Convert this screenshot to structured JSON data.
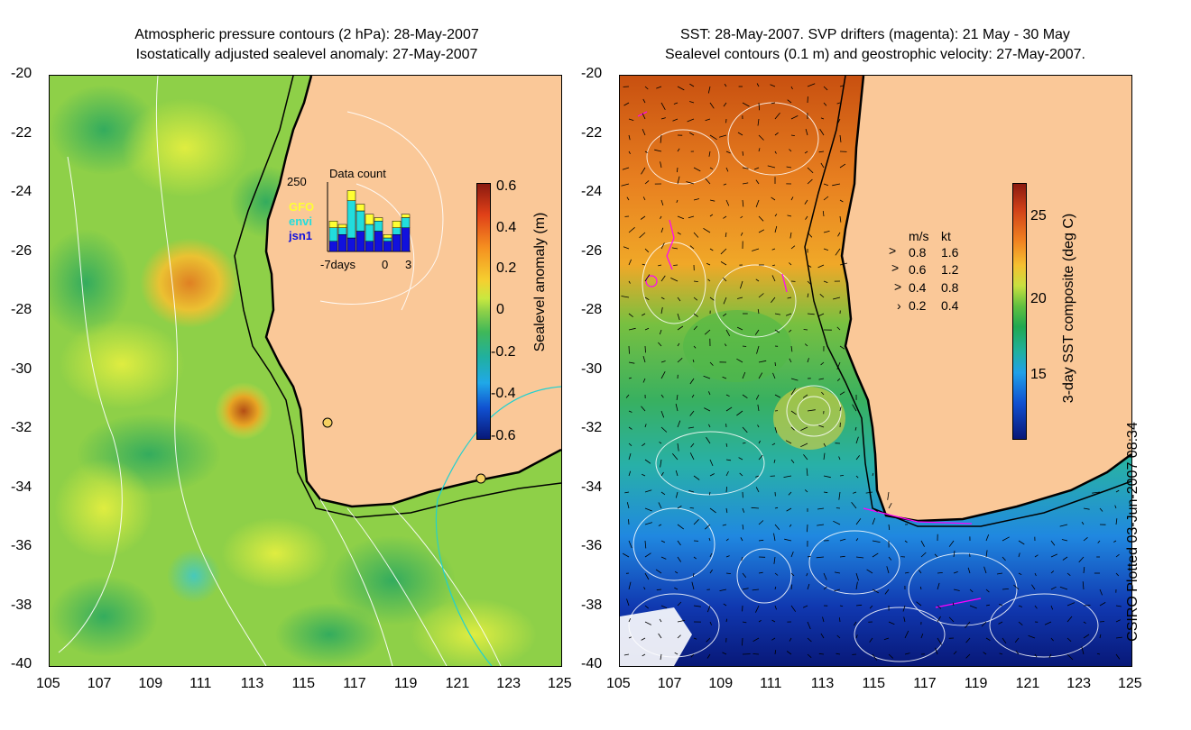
{
  "left_panel": {
    "title_line1": "Atmospheric pressure contours (2 hPa): 28-May-2007",
    "title_line2": "Isostatically adjusted sealevel anomaly: 27-May-2007",
    "colorbar_label": "Sealevel anomaly (m)",
    "colorbar_ticks": [
      "0.6",
      "0.4",
      "0.2",
      "0",
      "-0.2",
      "-0.4",
      "-0.6"
    ],
    "inset": {
      "title": "Data count",
      "y_max": "250",
      "satellites": [
        {
          "name": "GFO",
          "color": "#ffff33"
        },
        {
          "name": "envi",
          "color": "#22dddd"
        },
        {
          "name": "jsn1",
          "color": "#1111dd"
        }
      ],
      "x_labels": [
        "-7days",
        "0",
        "3"
      ],
      "bars": [
        {
          "gfo": 0.1,
          "envi": 0.2,
          "jsn1": 0.15
        },
        {
          "gfo": 0.05,
          "envi": 0.1,
          "jsn1": 0.25
        },
        {
          "gfo": 0.15,
          "envi": 0.55,
          "jsn1": 0.2
        },
        {
          "gfo": 0.1,
          "envi": 0.3,
          "jsn1": 0.3
        },
        {
          "gfo": 0.15,
          "envi": 0.25,
          "jsn1": 0.15
        },
        {
          "gfo": 0.05,
          "envi": 0.15,
          "jsn1": 0.3
        },
        {
          "gfo": 0.05,
          "envi": 0.05,
          "jsn1": 0.15
        },
        {
          "gfo": 0.1,
          "envi": 0.1,
          "jsn1": 0.25
        },
        {
          "gfo": 0.05,
          "envi": 0.15,
          "jsn1": 0.35
        }
      ]
    }
  },
  "right_panel": {
    "title_line1": "SST: 28-May-2007. SVP drifters (magenta): 21 May - 30 May",
    "title_line2": "Sealevel contours (0.1 m) and geostrophic velocity: 27-May-2007.",
    "colorbar_label": "3-day SST composite (deg C)",
    "colorbar_ticks": [
      "25",
      "20",
      "15"
    ],
    "velocity_legend": {
      "header_ms": "m/s",
      "header_kt": "kt",
      "rows": [
        {
          "ms": "0.8",
          "kt": "1.6"
        },
        {
          "ms": "0.6",
          "kt": "1.2"
        },
        {
          "ms": "0.4",
          "kt": "0.8"
        },
        {
          "ms": "0.2",
          "kt": "0.4"
        }
      ]
    }
  },
  "axes": {
    "x_ticks": [
      "105",
      "107",
      "109",
      "111",
      "113",
      "115",
      "117",
      "119",
      "121",
      "123",
      "125"
    ],
    "y_ticks": [
      "-20",
      "-22",
      "-24",
      "-26",
      "-28",
      "-30",
      "-32",
      "-34",
      "-36",
      "-38",
      "-40"
    ]
  },
  "credit": "CSIRO Plotted 03-Jun-2007 08:34",
  "colors": {
    "land": "#fac898",
    "coast": "#000000",
    "contour": "#ffffff",
    "drifter": "#ff00ff"
  }
}
